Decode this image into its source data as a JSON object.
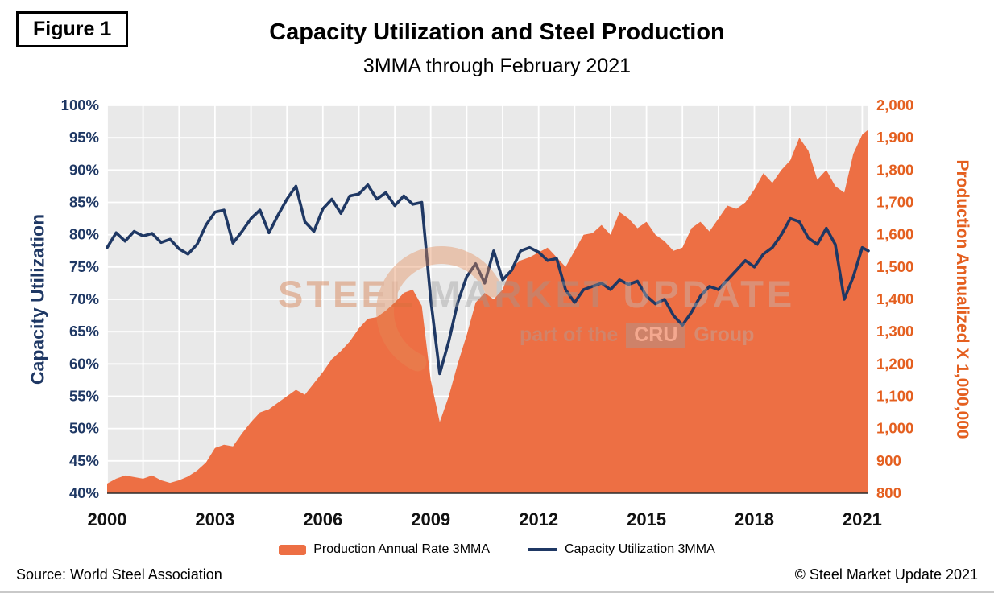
{
  "figure_label": "Figure 1",
  "title": "Capacity Utilization and Steel Production",
  "subtitle": "3MMA through February 2021",
  "watermark": {
    "brand_steel": "STEEL",
    "brand_market": "MARKET",
    "brand_update": "UPDATE",
    "tagline_prefix": "part of the",
    "tagline_box": "CRU",
    "tagline_suffix": "Group"
  },
  "legend": [
    {
      "label": "Production Annual Rate 3MMA",
      "type": "area",
      "color": "#ED6F44"
    },
    {
      "label": "Capacity Utilization 3MMA",
      "type": "line",
      "color": "#1F3864"
    }
  ],
  "footer": {
    "source": "Source: World Steel Association",
    "copyright": "© Steel Market Update 2021"
  },
  "colors": {
    "navy": "#1F3864",
    "orange_area": "#ED6F44",
    "orange_text": "#E45F1F",
    "plot_background": "#E9E9E9",
    "gridline": "#FFFFFF"
  },
  "chart_data": {
    "type": "area+line",
    "title": "Capacity Utilization and Steel Production",
    "subtitle": "3MMA through February 2021",
    "plot_bg": "#E9E9E9",
    "grid": true,
    "legend_position": "bottom",
    "x_range": [
      2000,
      2021.17
    ],
    "x_ticks": [
      "2000",
      "2003",
      "2006",
      "2009",
      "2012",
      "2015",
      "2018",
      "2021"
    ],
    "x_tick_values": [
      2000,
      2003,
      2006,
      2009,
      2012,
      2015,
      2018,
      2021
    ],
    "left_axis": {
      "title": "Capacity Utilization",
      "min": 40,
      "max": 100,
      "tick_step": 5,
      "labels": [
        "100%",
        "95%",
        "90%",
        "85%",
        "80%",
        "75%",
        "70%",
        "65%",
        "60%",
        "55%",
        "50%",
        "45%",
        "40%"
      ],
      "color": "#1F3864"
    },
    "right_axis": {
      "title": "Production Annualized X 1,000,000",
      "min": 800,
      "max": 2000,
      "tick_step": 100,
      "labels": [
        "2,000",
        "1,900",
        "1,800",
        "1,700",
        "1,600",
        "1,500",
        "1,400",
        "1,300",
        "1,200",
        "1,100",
        "1,000",
        "900",
        "800"
      ],
      "color": "#E45F1F"
    },
    "x": [
      2000,
      2000.25,
      2000.5,
      2000.75,
      2001,
      2001.25,
      2001.5,
      2001.75,
      2002,
      2002.25,
      2002.5,
      2002.75,
      2003,
      2003.25,
      2003.5,
      2003.75,
      2004,
      2004.25,
      2004.5,
      2004.75,
      2005,
      2005.25,
      2005.5,
      2005.75,
      2006,
      2006.25,
      2006.5,
      2006.75,
      2007,
      2007.25,
      2007.5,
      2007.75,
      2008,
      2008.25,
      2008.5,
      2008.75,
      2009,
      2009.25,
      2009.5,
      2009.75,
      2010,
      2010.25,
      2010.5,
      2010.75,
      2011,
      2011.25,
      2011.5,
      2011.75,
      2012,
      2012.25,
      2012.5,
      2012.75,
      2013,
      2013.25,
      2013.5,
      2013.75,
      2014,
      2014.25,
      2014.5,
      2014.75,
      2015,
      2015.25,
      2015.5,
      2015.75,
      2016,
      2016.25,
      2016.5,
      2016.75,
      2017,
      2017.25,
      2017.5,
      2017.75,
      2018,
      2018.25,
      2018.5,
      2018.75,
      2019,
      2019.25,
      2019.5,
      2019.75,
      2020,
      2020.25,
      2020.5,
      2020.75,
      2021,
      2021.17
    ],
    "series": [
      {
        "name": "Production Annual Rate 3MMA",
        "type": "area",
        "axis": "right",
        "color": "#ED6F44",
        "values": [
          830,
          845,
          855,
          850,
          845,
          855,
          840,
          832,
          840,
          852,
          870,
          895,
          940,
          950,
          945,
          985,
          1020,
          1050,
          1060,
          1080,
          1100,
          1120,
          1105,
          1140,
          1175,
          1215,
          1240,
          1270,
          1310,
          1340,
          1345,
          1365,
          1390,
          1420,
          1430,
          1380,
          1150,
          1020,
          1100,
          1200,
          1290,
          1390,
          1420,
          1400,
          1430,
          1500,
          1520,
          1530,
          1545,
          1560,
          1530,
          1500,
          1550,
          1600,
          1605,
          1630,
          1600,
          1670,
          1650,
          1620,
          1640,
          1600,
          1580,
          1550,
          1560,
          1620,
          1640,
          1610,
          1650,
          1690,
          1680,
          1700,
          1740,
          1790,
          1760,
          1800,
          1830,
          1900,
          1860,
          1770,
          1800,
          1750,
          1730,
          1850,
          1910,
          1925
        ]
      },
      {
        "name": "Capacity Utilization 3MMA",
        "type": "line",
        "axis": "left",
        "color": "#1F3864",
        "values": [
          78.0,
          80.3,
          79.0,
          80.5,
          79.8,
          80.2,
          78.8,
          79.3,
          77.8,
          77.0,
          78.5,
          81.5,
          83.5,
          83.8,
          78.7,
          80.5,
          82.5,
          83.8,
          80.3,
          83.0,
          85.5,
          87.5,
          82.0,
          80.5,
          84.0,
          85.5,
          83.3,
          86.0,
          86.3,
          87.7,
          85.5,
          86.5,
          84.5,
          86.0,
          84.7,
          85.0,
          70.0,
          58.5,
          63.5,
          69.5,
          73.5,
          75.5,
          72.5,
          77.5,
          73.0,
          74.5,
          77.5,
          78.0,
          77.3,
          76.0,
          76.3,
          71.5,
          69.5,
          71.5,
          72.0,
          72.5,
          71.5,
          73.0,
          72.3,
          72.8,
          70.5,
          69.3,
          70.0,
          67.5,
          66.0,
          68.0,
          70.5,
          72.0,
          71.5,
          73.0,
          74.5,
          76.0,
          75.0,
          77.0,
          78.0,
          80.0,
          82.5,
          82.0,
          79.5,
          78.5,
          81.0,
          78.5,
          70.0,
          73.5,
          78.0,
          77.5
        ]
      }
    ]
  }
}
